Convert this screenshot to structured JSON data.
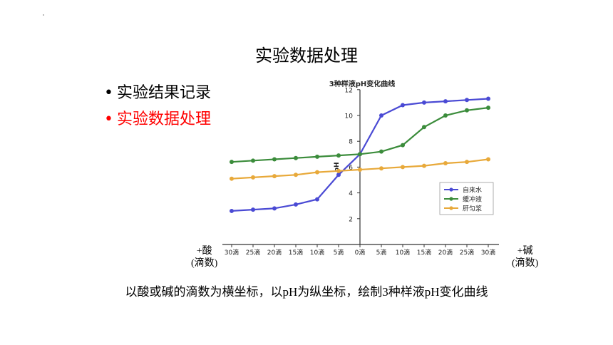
{
  "slide": {
    "title": "实验数据处理",
    "bullets": [
      {
        "text": "实验结果记录",
        "color": "#000000"
      },
      {
        "text": "实验数据处理",
        "color": "#ff0000"
      }
    ],
    "left_label": {
      "line1": "+酸",
      "line2": "(滴数)"
    },
    "right_label": {
      "line1": "+碱",
      "line2": "(滴数)"
    },
    "caption": "以酸或碱的滴数为横坐标，以pH为纵坐标，绘制3种样液pH变化曲线"
  },
  "chart_data": {
    "type": "line",
    "title": "3种样液pH变化曲线",
    "ylabel": "pH",
    "ylim": [
      0,
      12
    ],
    "yticks": [
      2,
      4,
      6,
      8,
      10,
      12
    ],
    "categories": [
      "30滴",
      "25滴",
      "20滴",
      "15滴",
      "10滴",
      "5滴",
      "0滴",
      "5滴",
      "10滴",
      "15滴",
      "20滴",
      "25滴",
      "30滴"
    ],
    "legend_position": "right",
    "series": [
      {
        "name": "自来水",
        "color": "#4a4ad4",
        "values": [
          2.6,
          2.7,
          2.8,
          3.1,
          3.5,
          5.4,
          7.0,
          10.0,
          10.8,
          11.0,
          11.1,
          11.2,
          11.3
        ]
      },
      {
        "name": "缓冲液",
        "color": "#3b8c3b",
        "values": [
          6.4,
          6.5,
          6.6,
          6.7,
          6.8,
          6.9,
          7.0,
          7.2,
          7.7,
          9.1,
          10.0,
          10.4,
          10.6
        ]
      },
      {
        "name": "肝匀浆",
        "color": "#e8a93a",
        "values": [
          5.1,
          5.2,
          5.3,
          5.4,
          5.6,
          5.7,
          5.8,
          5.9,
          6.0,
          6.1,
          6.3,
          6.4,
          6.6
        ]
      }
    ]
  }
}
